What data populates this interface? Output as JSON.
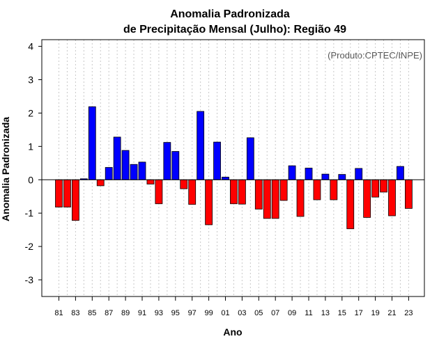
{
  "chart_data": {
    "type": "bar",
    "title": [
      "Anomalia Padronizada",
      "de Precipitação Mensal (Julho): Região 49"
    ],
    "xlabel": "Ano",
    "ylabel": "Anomalia Padronizada",
    "source_note": "(Produto:CPTEC/INPE)",
    "ylim": [
      -3.5,
      4.2
    ],
    "yticks": [
      -3,
      -2,
      -1,
      0,
      1,
      2,
      3,
      4
    ],
    "grid": true,
    "colors": {
      "positive": "#0000ff",
      "negative": "#ff0000",
      "edge": "#000000",
      "grid": "#c8c8c8"
    },
    "tick_labels": [
      "81",
      "83",
      "85",
      "87",
      "89",
      "91",
      "93",
      "95",
      "97",
      "99",
      "01",
      "03",
      "05",
      "07",
      "09",
      "11",
      "13",
      "15",
      "17",
      "19",
      "21",
      "23"
    ],
    "categories": [
      "1981",
      "1982",
      "1983",
      "1984",
      "1985",
      "1986",
      "1987",
      "1988",
      "1989",
      "1990",
      "1991",
      "1992",
      "1993",
      "1994",
      "1995",
      "1996",
      "1997",
      "1998",
      "1999",
      "2000",
      "2001",
      "2002",
      "2003",
      "2004",
      "2005",
      "2006",
      "2007",
      "2008",
      "2009",
      "2010",
      "2011",
      "2012",
      "2013",
      "2014",
      "2015",
      "2016",
      "2017",
      "2018",
      "2019",
      "2020",
      "2021",
      "2022",
      "2023"
    ],
    "values": [
      -0.82,
      -0.82,
      -1.22,
      0.03,
      2.19,
      -0.18,
      0.37,
      1.28,
      0.88,
      0.46,
      0.53,
      -0.13,
      -0.72,
      1.12,
      0.85,
      -0.27,
      -0.74,
      2.05,
      -1.35,
      1.13,
      0.08,
      -0.72,
      -0.73,
      1.26,
      -0.88,
      -1.16,
      -1.16,
      -0.62,
      0.42,
      -1.1,
      0.35,
      -0.6,
      0.17,
      -0.6,
      0.16,
      -1.47,
      0.34,
      -1.13,
      -0.52,
      -0.37,
      -1.08,
      0.4,
      -0.86
    ]
  }
}
